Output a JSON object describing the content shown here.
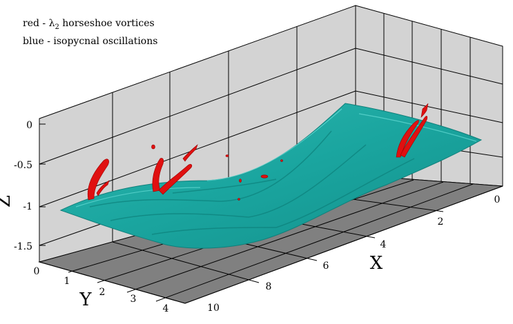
{
  "legend": {
    "red_prefix": "red - ",
    "lambda_symbol": "λ",
    "lambda_sub": "2",
    "red_rest": " horseshoe vortices",
    "blue_line": "blue - isopycnal oscillations"
  },
  "axes": {
    "x": {
      "title": "X",
      "ticks": [
        "0",
        "2",
        "4",
        "6",
        "8",
        "10"
      ]
    },
    "y": {
      "title": "Y",
      "ticks": [
        "0",
        "1",
        "2",
        "3",
        "4"
      ]
    },
    "z": {
      "title": "Z",
      "ticks": [
        "0",
        "-0.5",
        "-1",
        "-1.5"
      ]
    }
  },
  "colors": {
    "wall": "#d3d3d3",
    "floor": "#808080",
    "surface": "#1aa59f",
    "surface_light": "#3fc8c0",
    "vortex": "#e01010"
  }
}
